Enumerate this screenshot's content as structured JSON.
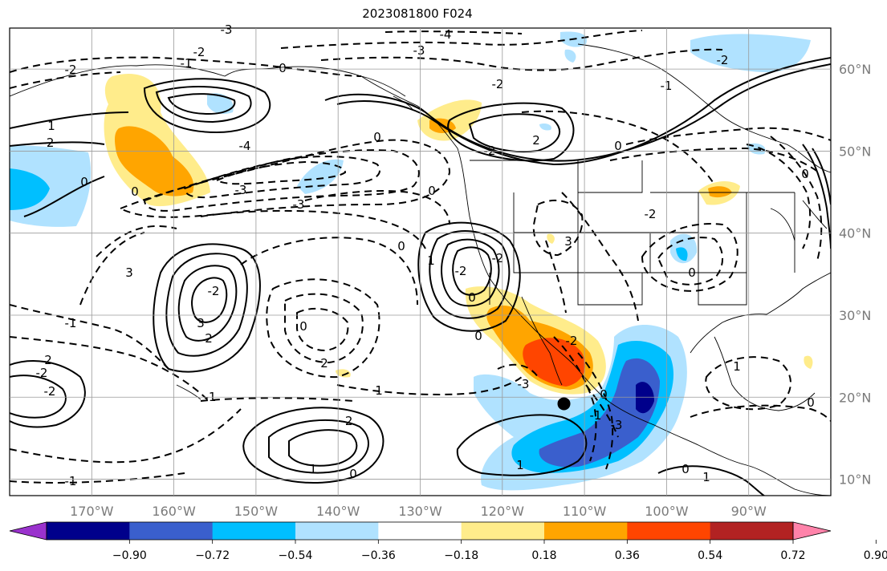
{
  "title": "2023081800 F024",
  "map": {
    "projection": "cylindrical",
    "lon_range": [
      -180,
      -80
    ],
    "lat_range": [
      8,
      65
    ],
    "grid": true,
    "lon_ticks": [
      "170°W",
      "160°W",
      "150°W",
      "140°W",
      "130°W",
      "120°W",
      "110°W",
      "100°W",
      "90°W"
    ],
    "lat_ticks": [
      "60°N",
      "50°N",
      "40°N",
      "30°N",
      "20°N",
      "10°N"
    ],
    "coastlines": true,
    "state_borders": true,
    "marker": {
      "name": "storm-center",
      "lon": -112.5,
      "lat": 19.2,
      "color": "#000000"
    }
  },
  "colorbar": {
    "orientation": "horizontal",
    "extend": "both",
    "colors": [
      "#9a32cd",
      "#00008b",
      "#3a5fcd",
      "#00bfff",
      "#b0e2ff",
      "#ffffff",
      "#ffec8b",
      "#ffa500",
      "#ff4500",
      "#b22222",
      "#ff83aa"
    ],
    "tick_labels": [
      "−0.90",
      "−0.72",
      "−0.54",
      "−0.36",
      "−0.18",
      "0.18",
      "0.36",
      "0.54",
      "0.72",
      "0.90"
    ]
  },
  "contour_labels": [
    "-3",
    "-4",
    "-3",
    "-2",
    "0",
    "-1",
    "-2",
    "0",
    "1",
    "-1",
    "0",
    "-2",
    "-4",
    "0",
    "-3",
    "-2",
    "0",
    "3",
    "-2",
    "0",
    "2",
    "-2",
    "0",
    "-3",
    "0",
    "1",
    "-2",
    "-2",
    "3",
    "-2",
    "-2",
    "3",
    "2",
    "0",
    "-2",
    "-2",
    "0",
    "1",
    "-2",
    "1",
    "0",
    "2",
    "1",
    "-2",
    "1",
    "-1",
    "0",
    "-1",
    "0",
    "1",
    "-1",
    "2",
    "0",
    "-3",
    "0",
    "-1",
    "-3",
    "0"
  ]
}
